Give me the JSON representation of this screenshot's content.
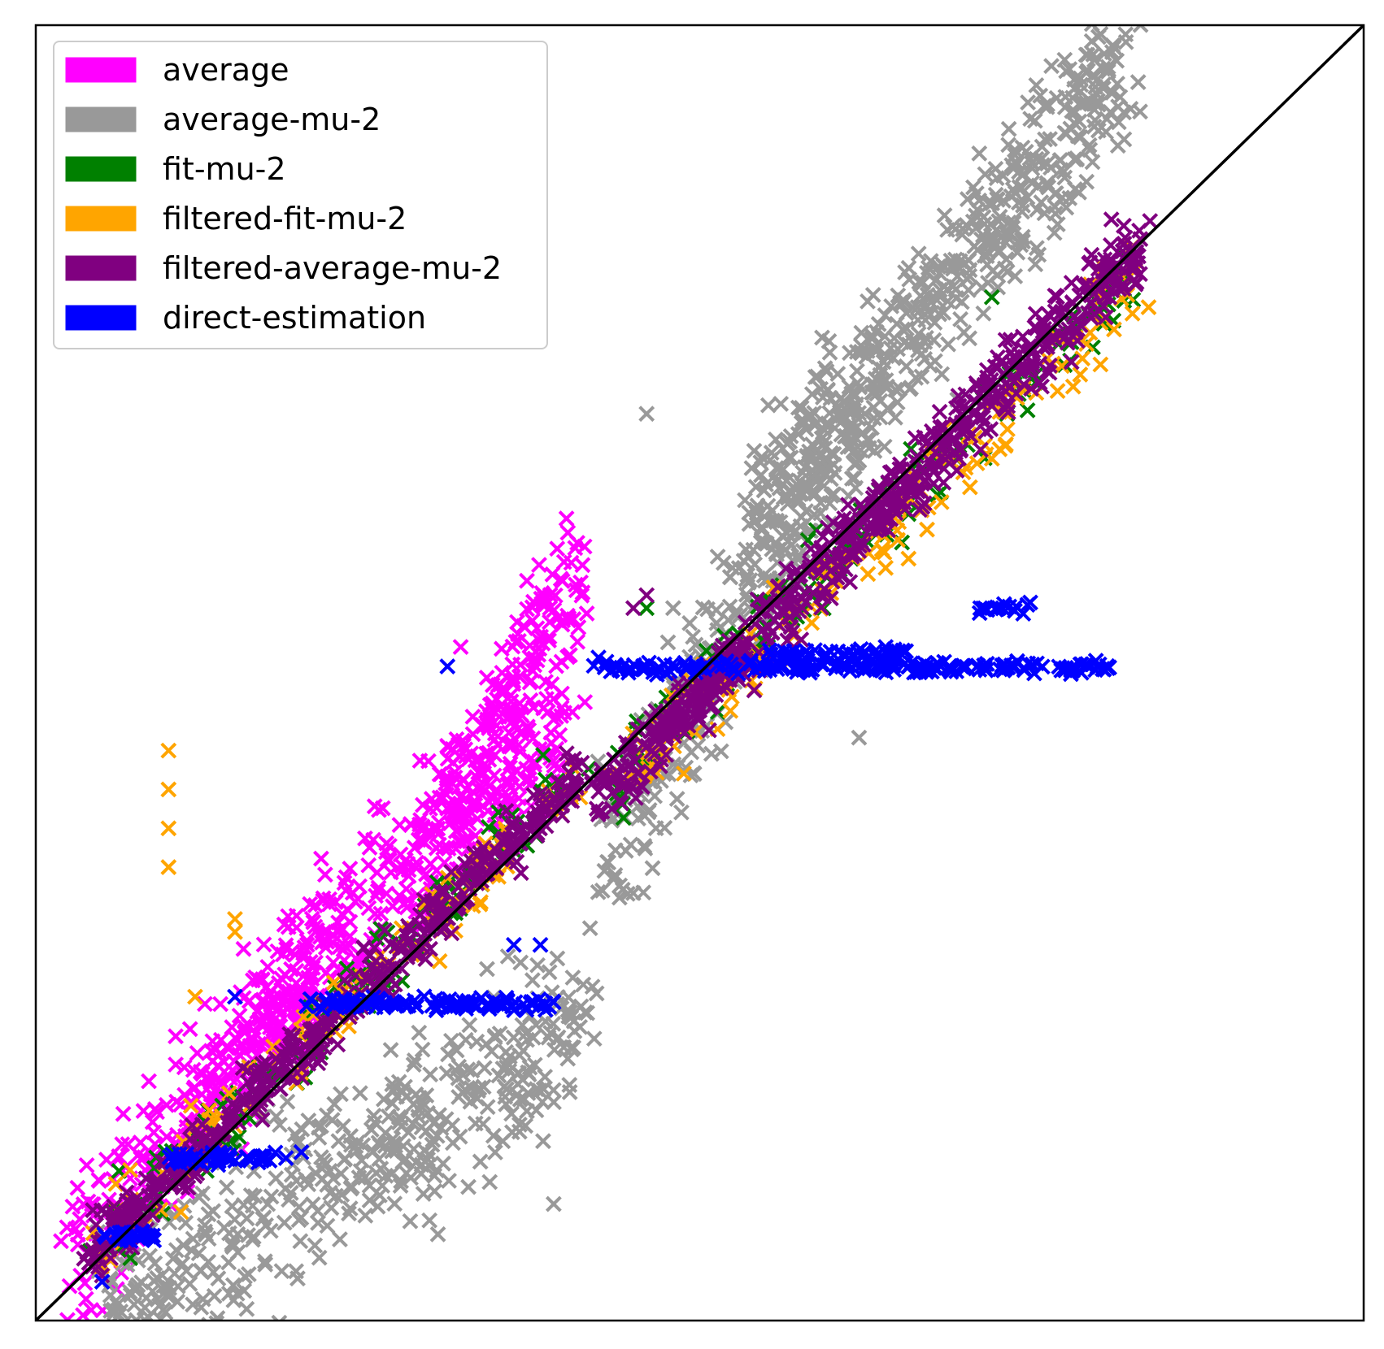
{
  "chart_data": {
    "type": "scatter",
    "title": "",
    "xlabel": "",
    "ylabel": "",
    "xlim": [
      0,
      1
    ],
    "ylim": [
      0,
      1
    ],
    "grid": false,
    "axis_ticks": false,
    "legend_position": "top-left",
    "reference_line": {
      "from": [
        0,
        0
      ],
      "to": [
        1,
        1
      ],
      "color": "#000000"
    },
    "marker": "x",
    "series": [
      {
        "name": "average",
        "color": "#ff00ff",
        "clusters": [
          {
            "x": [
              0.03,
              0.21
            ],
            "y": [
              0.05,
              0.27
            ],
            "n": 260,
            "spread": 0.05
          },
          {
            "x": [
              0.16,
              0.4
            ],
            "y": [
              0.22,
              0.47
            ],
            "n": 340,
            "spread": 0.05
          },
          {
            "x": [
              0.3,
              0.41
            ],
            "y": [
              0.38,
              0.58
            ],
            "n": 160,
            "spread": 0.04
          }
        ],
        "outliers": [
          [
            0.32,
            0.52
          ],
          [
            0.39,
            0.48
          ],
          [
            0.06,
            0.05
          ]
        ]
      },
      {
        "name": "average-mu-2",
        "color": "#999999",
        "clusters": [
          {
            "x": [
              0.05,
              0.41
            ],
            "y": [
              0.0,
              0.23
            ],
            "n": 460,
            "spread": 0.06
          },
          {
            "x": [
              0.43,
              0.6
            ],
            "y": [
              0.36,
              0.68
            ],
            "n": 260,
            "spread": 0.05
          },
          {
            "x": [
              0.55,
              0.82
            ],
            "y": [
              0.62,
              0.97
            ],
            "n": 520,
            "spread": 0.05
          }
        ],
        "outliers": [
          [
            0.46,
            0.7
          ],
          [
            0.62,
            0.45
          ],
          [
            0.39,
            0.09
          ],
          [
            0.45,
            0.33
          ],
          [
            0.48,
            0.55
          ]
        ]
      },
      {
        "name": "fit-mu-2",
        "color": "#008000",
        "clusters": [
          {
            "x": [
              0.04,
              0.41
            ],
            "y": [
              0.05,
              0.43
            ],
            "n": 110,
            "spread": 0.025
          },
          {
            "x": [
              0.43,
              0.83
            ],
            "y": [
              0.42,
              0.81
            ],
            "n": 140,
            "spread": 0.025
          }
        ],
        "outliers": [
          [
            0.46,
            0.55
          ],
          [
            0.72,
            0.79
          ]
        ]
      },
      {
        "name": "filtered-fit-mu-2",
        "color": "#ffa500",
        "clusters": [
          {
            "x": [
              0.04,
              0.41
            ],
            "y": [
              0.05,
              0.42
            ],
            "n": 110,
            "spread": 0.025
          },
          {
            "x": [
              0.43,
              0.83
            ],
            "y": [
              0.4,
              0.8
            ],
            "n": 150,
            "spread": 0.025
          }
        ],
        "outliers": [
          [
            0.1,
            0.44
          ],
          [
            0.1,
            0.41
          ],
          [
            0.1,
            0.38
          ],
          [
            0.1,
            0.35
          ],
          [
            0.15,
            0.31
          ],
          [
            0.15,
            0.3
          ],
          [
            0.12,
            0.25
          ]
        ]
      },
      {
        "name": "filtered-average-mu-2",
        "color": "#800080",
        "clusters": [
          {
            "x": [
              0.04,
              0.41
            ],
            "y": [
              0.05,
              0.42
            ],
            "n": 420,
            "spread": 0.018
          },
          {
            "x": [
              0.42,
              0.83
            ],
            "y": [
              0.4,
              0.83
            ],
            "n": 620,
            "spread": 0.022
          }
        ],
        "outliers": [
          [
            0.46,
            0.56
          ],
          [
            0.45,
            0.55
          ],
          [
            0.81,
            0.85
          ],
          [
            0.78,
            0.74
          ]
        ]
      },
      {
        "name": "direct-estimation",
        "color": "#0000ff",
        "segments": [
          {
            "x": [
              0.05,
              0.09
            ],
            "y": 0.065,
            "n": 30
          },
          {
            "x": [
              0.1,
              0.19
            ],
            "y": 0.125,
            "n": 55
          },
          {
            "x": [
              0.2,
              0.39
            ],
            "y": 0.245,
            "n": 110
          },
          {
            "x": [
              0.42,
              0.81
            ],
            "y": 0.505,
            "n": 200
          },
          {
            "x": [
              0.55,
              0.66
            ],
            "y": 0.515,
            "n": 50
          },
          {
            "x": [
              0.71,
              0.75
            ],
            "y": 0.55,
            "n": 18
          }
        ],
        "outliers": [
          [
            0.31,
            0.505
          ],
          [
            0.15,
            0.25
          ],
          [
            0.2,
            0.13
          ],
          [
            0.05,
            0.03
          ],
          [
            0.38,
            0.29
          ],
          [
            0.36,
            0.29
          ],
          [
            0.64,
            0.52
          ]
        ]
      }
    ]
  }
}
